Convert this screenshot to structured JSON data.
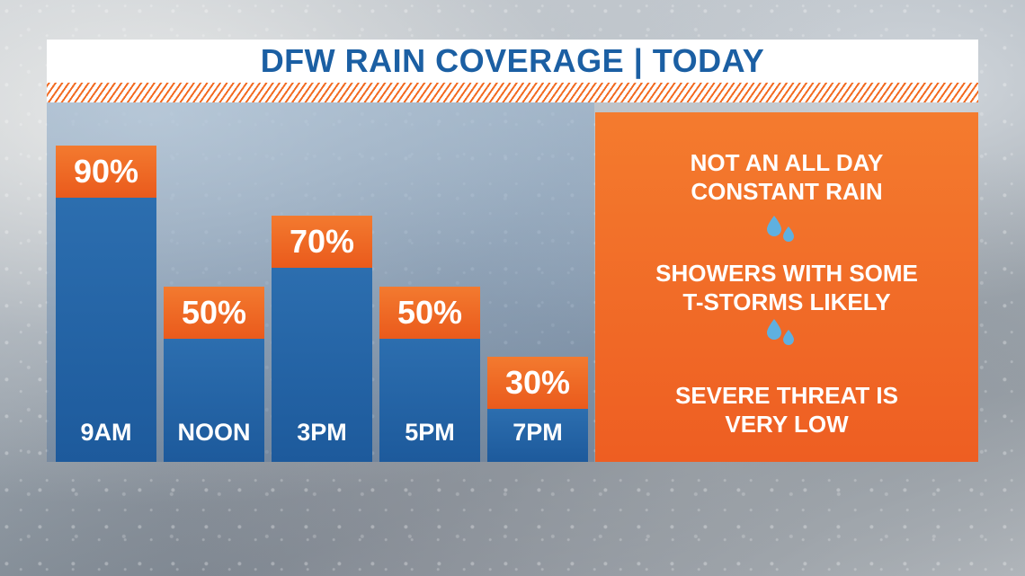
{
  "title": "DFW RAIN COVERAGE | TODAY",
  "chart_data": {
    "type": "bar",
    "categories": [
      "9AM",
      "NOON",
      "3PM",
      "5PM",
      "7PM"
    ],
    "values": [
      90,
      50,
      70,
      50,
      30
    ],
    "value_labels": [
      "90%",
      "50%",
      "70%",
      "50%",
      "30%"
    ],
    "title": "DFW RAIN COVERAGE | TODAY",
    "xlabel": "",
    "ylabel": "",
    "ylim": [
      0,
      100
    ],
    "colors": {
      "bar": "#1d5a9c",
      "label_box": "#ee5e22"
    }
  },
  "info_panel": {
    "line1": "NOT AN ALL DAY\nCONSTANT RAIN",
    "line2": "SHOWERS WITH SOME\nT-STORMS LIKELY",
    "line3": "SEVERE THREAT IS\nVERY LOW",
    "icon": "raindrops-icon",
    "icon_color": "#5fb0e0"
  }
}
